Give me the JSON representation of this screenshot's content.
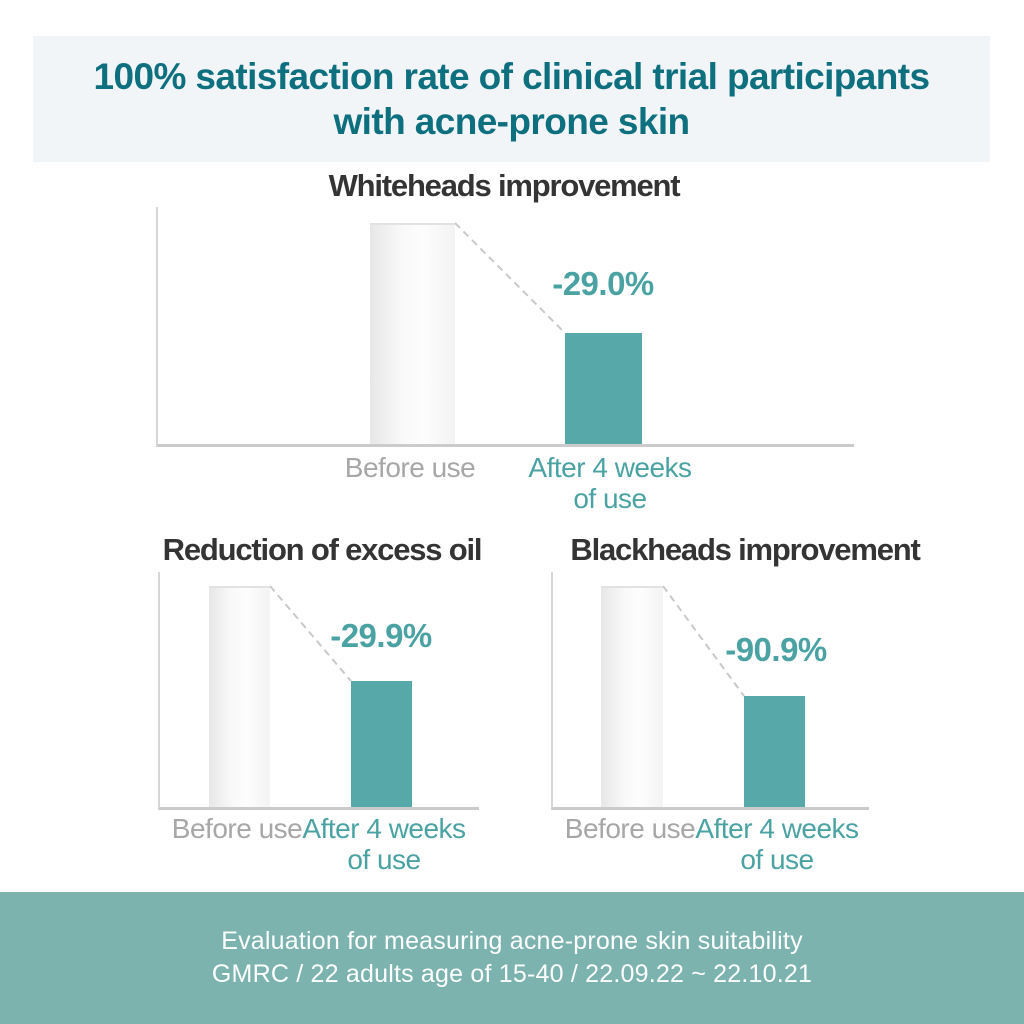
{
  "header": {
    "title_line1": "100% satisfaction rate of clinical trial participants",
    "title_line2": "with acne-prone skin"
  },
  "footer": {
    "line1": "Evaluation for measuring acne-prone skin suitability",
    "line2": "GMRC / 22 adults age of 15-40 / 22.09.22 ~ 22.10.21"
  },
  "colors": {
    "header_bg": "#f1f5f8",
    "header_text": "#0e6f7e",
    "accent_teal_bar": "#57a8a8",
    "accent_teal_text": "#4ba2a3",
    "before_bar_fill": "#f5f5f5",
    "before_label_gray": "#a7a7a7",
    "axis_gray": "#cbcbcb",
    "dashed_line_gray": "#c9c9c9",
    "footer_bg": "#7cb3af",
    "footer_text": "#fdfffe",
    "chart_title_text": "#343434"
  },
  "chart_data": [
    {
      "type": "bar",
      "title": "Whiteheads improvement",
      "categories": [
        "Before use",
        "After 4 weeks of use"
      ],
      "series": [
        {
          "name": "relative level vs baseline (as drawn)",
          "values": [
            100,
            50
          ]
        }
      ],
      "change_label": "-29.0%",
      "change_percent": -29.0,
      "xlabels": {
        "before": "Before use",
        "after_line1": "After 4 weeks",
        "after_line2": "of use"
      },
      "bar_colors": [
        "#f5f5f5",
        "#57a8a8"
      ],
      "annotation": "dashed connector from baseline bar top to after-use bar top",
      "grid": false,
      "legend": false
    },
    {
      "type": "bar",
      "title": "Reduction of excess oil",
      "categories": [
        "Before use",
        "After 4 weeks of use"
      ],
      "series": [
        {
          "name": "relative level vs baseline (as drawn)",
          "values": [
            100,
            57
          ]
        }
      ],
      "change_label": "-29.9%",
      "change_percent": -29.9,
      "xlabels": {
        "before": "Before use",
        "after_line1": "After 4 weeks",
        "after_line2": "of use"
      },
      "bar_colors": [
        "#f5f5f5",
        "#57a8a8"
      ],
      "annotation": "dashed connector from baseline bar top to after-use bar top",
      "grid": false,
      "legend": false
    },
    {
      "type": "bar",
      "title": "Blackheads improvement",
      "categories": [
        "Before use",
        "After 4 weeks of use"
      ],
      "series": [
        {
          "name": "relative level vs baseline (as drawn)",
          "values": [
            100,
            50
          ]
        }
      ],
      "change_label": "-90.9%",
      "change_percent": -90.9,
      "xlabels": {
        "before": "Before use",
        "after_line1": "After 4 weeks",
        "after_line2": "of use"
      },
      "bar_colors": [
        "#f5f5f5",
        "#57a8a8"
      ],
      "annotation": "dashed connector from baseline bar top to after-use bar top",
      "grid": false,
      "legend": false
    }
  ]
}
